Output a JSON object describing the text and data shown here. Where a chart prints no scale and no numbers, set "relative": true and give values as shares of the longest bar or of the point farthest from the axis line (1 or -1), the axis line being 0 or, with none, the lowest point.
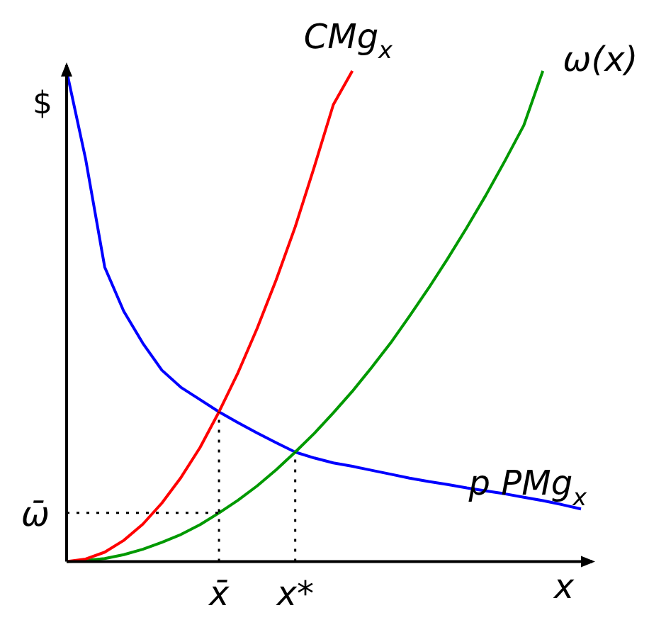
{
  "chart_data": {
    "type": "line",
    "relative": true,
    "xlabel": "x",
    "ylabel": "$",
    "marker": "none",
    "line_style": "solid",
    "categories": [
      null,
      null,
      null,
      null,
      null,
      null,
      null,
      null,
      "x̄",
      null,
      null,
      null,
      "x*",
      null,
      null,
      null,
      null,
      null,
      null,
      null,
      null,
      null,
      null,
      null,
      null,
      null,
      null,
      null
    ],
    "series": [
      {
        "name": "CMg$_{x}$",
        "color": "#ff0000",
        "values": [
          0,
          0.005,
          0.019,
          0.043,
          0.076,
          0.119,
          0.171,
          0.232,
          0.305,
          0.385,
          0.475,
          0.574,
          0.682,
          0.804,
          0.931,
          1,
          null,
          null,
          null,
          null,
          null,
          null,
          null,
          null,
          null,
          null,
          null,
          null
        ]
      },
      {
        "name": "ω(x)",
        "color": "#009900",
        "values": [
          0,
          0.002,
          0.006,
          0.014,
          0.025,
          0.039,
          0.055,
          0.075,
          0.099,
          0.125,
          0.154,
          0.187,
          0.223,
          0.261,
          0.303,
          0.347,
          0.395,
          0.445,
          0.5,
          0.557,
          0.617,
          0.68,
          0.746,
          0.816,
          0.889,
          1,
          null,
          null
        ]
      },
      {
        "name": "p PMg$_{x}$",
        "color": "#0000ff",
        "values": [
          1,
          0.82,
          0.6,
          0.51,
          0.445,
          0.39,
          0.355,
          0.33,
          0.305,
          0.283,
          0.262,
          0.242,
          0.223,
          0.211,
          0.201,
          0.194,
          0.186,
          0.178,
          0.17,
          0.163,
          0.157,
          0.15,
          0.144,
          0.138,
          0.131,
          0.124,
          0.116,
          0.107
        ]
      }
    ],
    "ref_lines": [
      {
        "axis": "x",
        "value": "x̄",
        "color": "#000000",
        "line_style": "dotted"
      },
      {
        "axis": "x",
        "value": "x*",
        "color": "#000000",
        "line_style": "dotted"
      },
      {
        "axis": "y",
        "value": 0.099,
        "label": "ω̄",
        "color": "#000000",
        "line_style": "dotted"
      }
    ]
  }
}
